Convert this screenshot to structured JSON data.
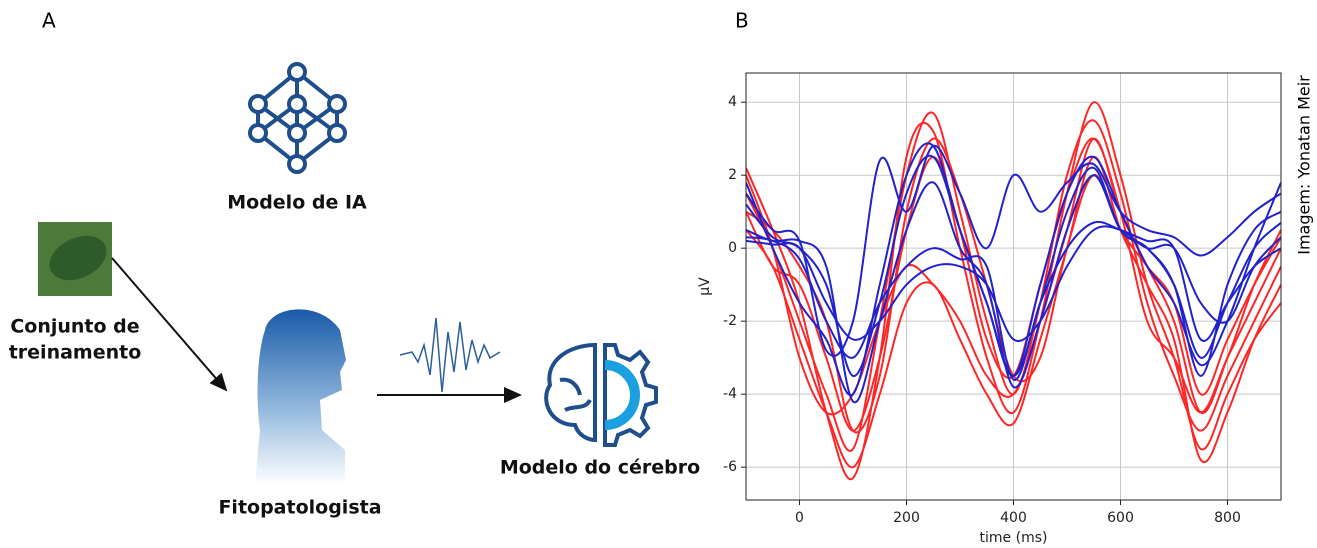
{
  "panels": {
    "a": "A",
    "b": "B"
  },
  "diagram": {
    "ai_model": "Modelo de IA",
    "training_set": [
      "Conjunto de",
      "treinamento"
    ],
    "pathologist": "Fitopatologista",
    "brain_model": "Modelo do cérebro"
  },
  "credit": "Imagem: Yonatan Meir",
  "chart_data": {
    "type": "line",
    "xlabel": "time (ms)",
    "ylabel": "μV",
    "x": [
      -100,
      -50,
      0,
      50,
      100,
      150,
      200,
      250,
      300,
      350,
      400,
      450,
      500,
      550,
      600,
      650,
      700,
      750,
      800,
      850,
      900
    ],
    "xlim": [
      -100,
      900
    ],
    "xticks": [
      0,
      200,
      400,
      600,
      800
    ],
    "ylim": [
      -6.9,
      4.8
    ],
    "yticks": [
      -6,
      -4,
      -2,
      0,
      2,
      4
    ],
    "grid": true,
    "series": [
      {
        "color": "#ff2626",
        "values": [
          2.2,
          0.5,
          -1.5,
          -4.5,
          -6.3,
          -3,
          2.5,
          3.2,
          0,
          -3,
          -4.5,
          -2,
          1.5,
          4,
          2,
          -1,
          -3,
          -5.5,
          -4,
          -2.5,
          -1.5
        ]
      },
      {
        "color": "#ff2626",
        "values": [
          1.5,
          0,
          -2,
          -4,
          -5.5,
          -2,
          2,
          3.7,
          1,
          -2,
          -4,
          -1.5,
          2,
          3.5,
          1.5,
          -1.5,
          -3.5,
          -5,
          -3.5,
          -2,
          -0.5
        ]
      },
      {
        "color": "#ff2626",
        "values": [
          1,
          -0.5,
          -1,
          -3,
          -5,
          -3,
          0.5,
          2.5,
          0.5,
          -2.5,
          -3.5,
          -1,
          1.5,
          3,
          1,
          -2,
          -3,
          -4.5,
          -3,
          -1.5,
          0
        ]
      },
      {
        "color": "#ff2626",
        "values": [
          0.5,
          -0.5,
          -2.5,
          -4.5,
          -6,
          -4,
          -1.5,
          -1,
          -2.5,
          -4,
          -4.8,
          -2.5,
          0,
          2.5,
          0.5,
          -1,
          -2.5,
          -5.8,
          -4.5,
          -2.5,
          -1
        ]
      },
      {
        "color": "#ff2626",
        "values": [
          2,
          0,
          -3,
          -4.5,
          -4,
          -2,
          -0.5,
          -1,
          -2,
          -3.5,
          -4,
          -2,
          0.5,
          3,
          1,
          -0.5,
          -2,
          -4.5,
          -3,
          -1,
          0.5
        ]
      },
      {
        "color": "#ff2626",
        "values": [
          1,
          0.5,
          -0.5,
          -2,
          -5,
          -3.5,
          1,
          3,
          1.5,
          -1,
          -3.5,
          -3,
          0,
          2,
          0.5,
          -0.5,
          -1.5,
          -4,
          -2.5,
          -1,
          0.3
        ]
      },
      {
        "color": "#2222cc",
        "values": [
          1.8,
          0,
          -1.5,
          -2.5,
          -4,
          -1,
          2,
          2.8,
          0.5,
          -1.5,
          -3.5,
          -1,
          1.5,
          2.5,
          1,
          -0.5,
          -1.5,
          -3.2,
          -2,
          0,
          1.8
        ]
      },
      {
        "color": "#2222cc",
        "values": [
          1.2,
          0.3,
          0,
          -1,
          -3.5,
          -1.5,
          1.5,
          2.5,
          0.5,
          -1.5,
          -3.5,
          -1.5,
          1,
          2.2,
          0.5,
          0,
          -1,
          -3.5,
          -1,
          0.5,
          1
        ]
      },
      {
        "color": "#2222cc",
        "values": [
          0.5,
          0.2,
          0.2,
          -0.5,
          -4.2,
          -2,
          0.5,
          1.8,
          0,
          -1,
          -3.8,
          -2,
          0.5,
          2,
          0.5,
          0,
          -1,
          -3,
          -1.5,
          0,
          0.7
        ]
      },
      {
        "color": "#2222cc",
        "values": [
          0.2,
          0.1,
          0,
          -1.5,
          -2.5,
          -2,
          -1,
          -0.5,
          -0.5,
          -1,
          -2.5,
          -2,
          -0.5,
          0.5,
          0.5,
          0,
          0,
          -1.5,
          -2,
          -0.5,
          0.3
        ]
      },
      {
        "color": "#2222cc",
        "values": [
          0.3,
          0.2,
          -0.3,
          -2,
          -3,
          -1.5,
          -0.5,
          0,
          -0.3,
          -0.5,
          -3.6,
          -1.5,
          0,
          0.7,
          0.5,
          0.2,
          0,
          -2.5,
          -1.5,
          -0.5,
          0
        ]
      },
      {
        "color": "#2222cc",
        "values": [
          1.5,
          0.5,
          0.2,
          -2.8,
          -2,
          2.4,
          1,
          2.8,
          1.5,
          0,
          2,
          1,
          1.8,
          2.3,
          1,
          0.5,
          0.3,
          -0.2,
          0.3,
          1,
          1.5
        ]
      }
    ]
  }
}
